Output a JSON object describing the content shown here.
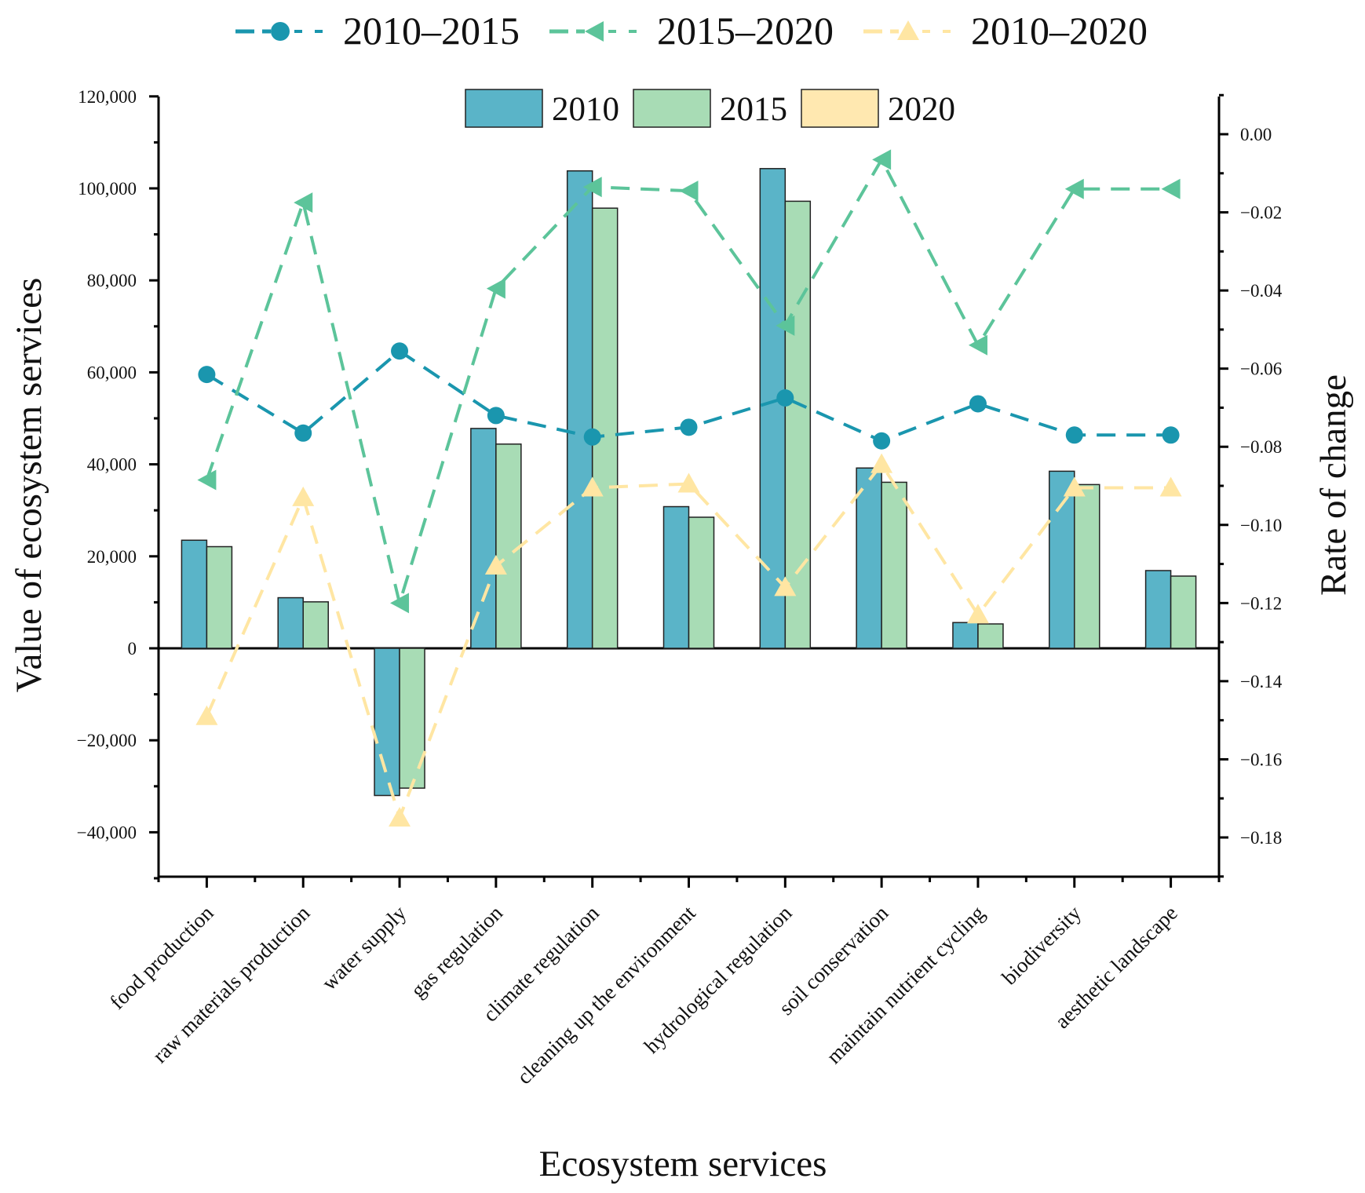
{
  "chart_data": {
    "type": "bar+line",
    "xlabel": "Ecosystem services",
    "ylabel_left": "Value of ecosystem services",
    "ylabel_right": "Rate of change",
    "ylim_left": [
      -50000,
      120000
    ],
    "ylim_right": [
      -0.19,
      0.01
    ],
    "yticks_left": [
      -40000,
      -20000,
      0,
      20000,
      40000,
      60000,
      80000,
      100000,
      120000
    ],
    "ytick_labels_left": [
      "−40,000",
      "−20,000",
      "0",
      "20,000",
      "40,000",
      "60,000",
      "80,000",
      "100,000",
      "120,000"
    ],
    "yticks_right": [
      0.0,
      -0.02,
      -0.04,
      -0.06,
      -0.08,
      -0.1,
      -0.12,
      -0.14,
      -0.16,
      -0.18
    ],
    "ytick_labels_right": [
      "0.00",
      "−0.02",
      "−0.04",
      "−0.06",
      "−0.08",
      "−0.10",
      "−0.12",
      "−0.14",
      "−0.16",
      "−0.18"
    ],
    "categories": [
      "food production",
      "raw materials production",
      "water supply",
      "gas regulation",
      "climate regulation",
      "cleaning up the environment",
      "hydrological regulation",
      "soil conservation",
      "maintain nutrient cycling",
      "biodiversity",
      "aesthetic landscape"
    ],
    "bar_series": [
      {
        "name": "2010",
        "color": "#5AB4C8",
        "values": [
          23500,
          11000,
          -32000,
          47800,
          103800,
          30800,
          104300,
          39200,
          5600,
          38500,
          16900
        ]
      },
      {
        "name": "2015",
        "color": "#A8DCB5",
        "values": [
          22100,
          10100,
          -30400,
          44400,
          95700,
          28500,
          97200,
          36100,
          5300,
          35600,
          15700
        ]
      },
      {
        "name": "2020",
        "color": "#FFE8B0",
        "values": [
          null,
          null,
          null,
          null,
          null,
          null,
          null,
          null,
          null,
          null,
          null
        ]
      }
    ],
    "line_series": [
      {
        "name": "2010–2015",
        "color": "#1A96AE",
        "marker": "circle",
        "values": [
          -0.0615,
          -0.0765,
          -0.0555,
          -0.072,
          -0.0775,
          -0.075,
          -0.0675,
          -0.0785,
          -0.069,
          -0.077,
          -0.077
        ]
      },
      {
        "name": "2015–2020",
        "color": "#5CC49A",
        "marker": "left-triangle",
        "values": [
          -0.0885,
          -0.0175,
          -0.12,
          -0.0395,
          -0.0135,
          -0.0145,
          -0.049,
          -0.0065,
          -0.054,
          -0.014,
          -0.014
        ]
      },
      {
        "name": "2010–2020",
        "color": "#FFE6A3",
        "marker": "triangle",
        "values": [
          -0.149,
          -0.093,
          -0.175,
          -0.1105,
          -0.0905,
          -0.0895,
          -0.116,
          -0.0845,
          -0.123,
          -0.0905,
          -0.0905
        ]
      }
    ]
  }
}
